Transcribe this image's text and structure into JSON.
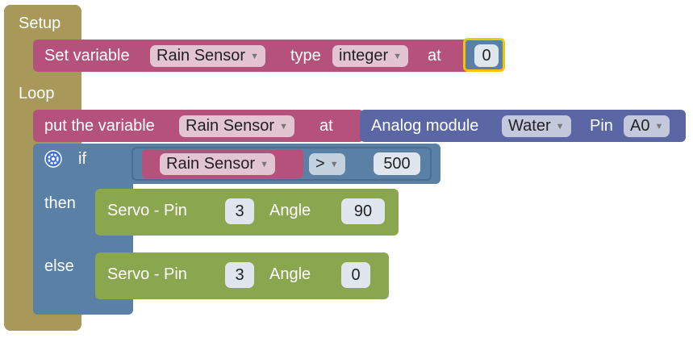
{
  "setup": {
    "label": "Setup",
    "set_variable": {
      "prefix": "Set variable",
      "variable": "Rain Sensor",
      "type_label": "type",
      "type_value": "integer",
      "at_label": "at",
      "value": "0"
    }
  },
  "loop": {
    "label": "Loop",
    "put_variable": {
      "prefix": "put the variable",
      "variable": "Rain Sensor",
      "at_label": "at",
      "module_label": "Analog module",
      "module_value": "Water",
      "pin_label": "Pin",
      "pin_value": "A0"
    },
    "if_block": {
      "if_label": "if",
      "then_label": "then",
      "else_label": "else",
      "compare_variable": "Rain Sensor",
      "operator": ">",
      "compare_value": "500"
    },
    "servo_then": {
      "label": "Servo - Pin",
      "pin": "3",
      "angle_label": "Angle",
      "angle": "90"
    },
    "servo_else": {
      "label": "Servo - Pin",
      "pin": "3",
      "angle_label": "Angle",
      "angle": "0"
    }
  },
  "colors": {
    "control": "#a8985a",
    "variable": "#b5527c",
    "logic": "#5b80a5",
    "analog": "#5b67a5",
    "servo": "#8aa64f",
    "highlight": "#f5c400"
  }
}
